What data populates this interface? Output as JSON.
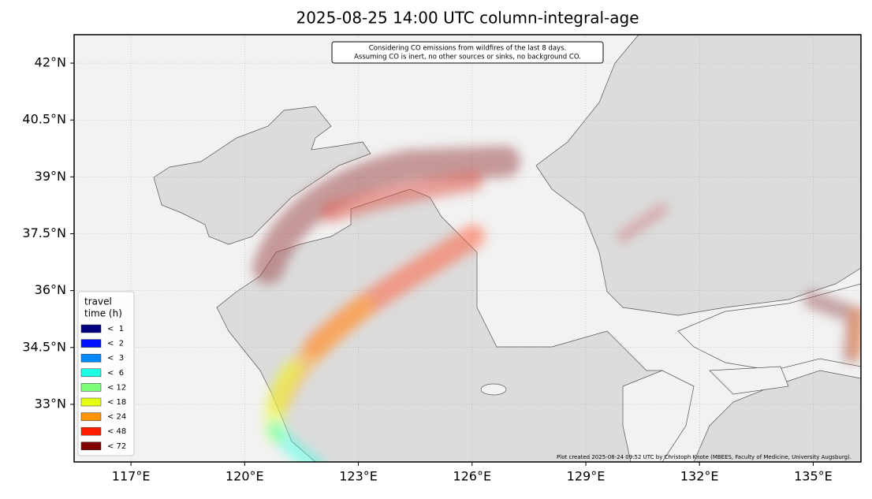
{
  "title": "2025-08-25 14:00 UTC column-integral-age",
  "annotation": {
    "lines": [
      "Considering CO emissions from wildfires of the last 8 days.",
      "Assuming CO is inert, no other sources or sinks, no background CO."
    ]
  },
  "credit": "Plot created 2025-08-24 09:52 UTC by Christoph Knote (MBEES, Faculty of Medicine, University Augsburg).",
  "map": {
    "lonlim": [
      115.5,
      136.26
    ],
    "latlim": [
      31.48,
      42.75
    ],
    "lon_ticks": [
      {
        "value": 117,
        "label": "117°E"
      },
      {
        "value": 120,
        "label": "120°E"
      },
      {
        "value": 123,
        "label": "123°E"
      },
      {
        "value": 126,
        "label": "126°E"
      },
      {
        "value": 129,
        "label": "129°E"
      },
      {
        "value": 132,
        "label": "132°E"
      },
      {
        "value": 135,
        "label": "135°E"
      }
    ],
    "lat_ticks": [
      {
        "value": 42,
        "label": "42°N"
      },
      {
        "value": 40.5,
        "label": "40.5°N"
      },
      {
        "value": 39,
        "label": "39°N"
      },
      {
        "value": 37.5,
        "label": "37.5°N"
      },
      {
        "value": 36,
        "label": "36°N"
      },
      {
        "value": 34.5,
        "label": "34.5°N"
      },
      {
        "value": 33,
        "label": "33°N"
      }
    ]
  },
  "legend": {
    "title": [
      "travel",
      "time (h)"
    ],
    "items": [
      {
        "label": "<  1",
        "color": "#000080"
      },
      {
        "label": "<  2",
        "color": "#0010ff"
      },
      {
        "label": "<  3",
        "color": "#0088ff"
      },
      {
        "label": "<  6",
        "color": "#1affe4"
      },
      {
        "label": "< 12",
        "color": "#7cff79"
      },
      {
        "label": "< 18",
        "color": "#e4ff13"
      },
      {
        "label": "< 24",
        "color": "#ff9400"
      },
      {
        "label": "< 48",
        "color": "#ff1e00"
      },
      {
        "label": "< 72",
        "color": "#800000"
      }
    ]
  }
}
